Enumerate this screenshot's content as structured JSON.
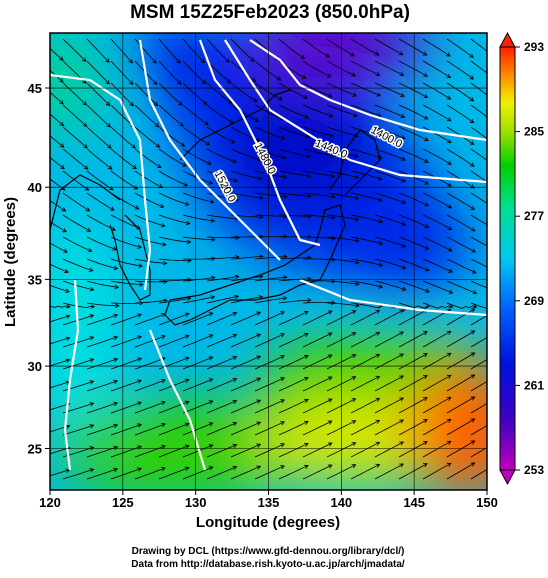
{
  "map": {
    "title": "MSM 15Z25Feb2023 (850.0hPa)",
    "x_label": "Longitude (degrees)",
    "y_label": "Latitude  (degrees)",
    "projection": "mercator",
    "xlim": [
      120,
      150
    ],
    "xticks": [
      120,
      125,
      130,
      135,
      140,
      145,
      150
    ],
    "ylim": [
      22.4,
      47.6
    ],
    "yticks": [
      25,
      30,
      35,
      40,
      45
    ],
    "colorbar": {
      "lim": [
        253,
        293
      ],
      "ticks": [
        253,
        261,
        269,
        277,
        285,
        293
      ]
    },
    "contour_labels": [
      "1400.0",
      "1440.0",
      "1480.0",
      "1520.0"
    ]
  },
  "footer": [
    "Drawing by DCL (https://www.gfd-dennou.org/library/dcl/)",
    "Data from http://database.rish.kyoto-u.ac.jp/arch/jmadata/"
  ]
}
